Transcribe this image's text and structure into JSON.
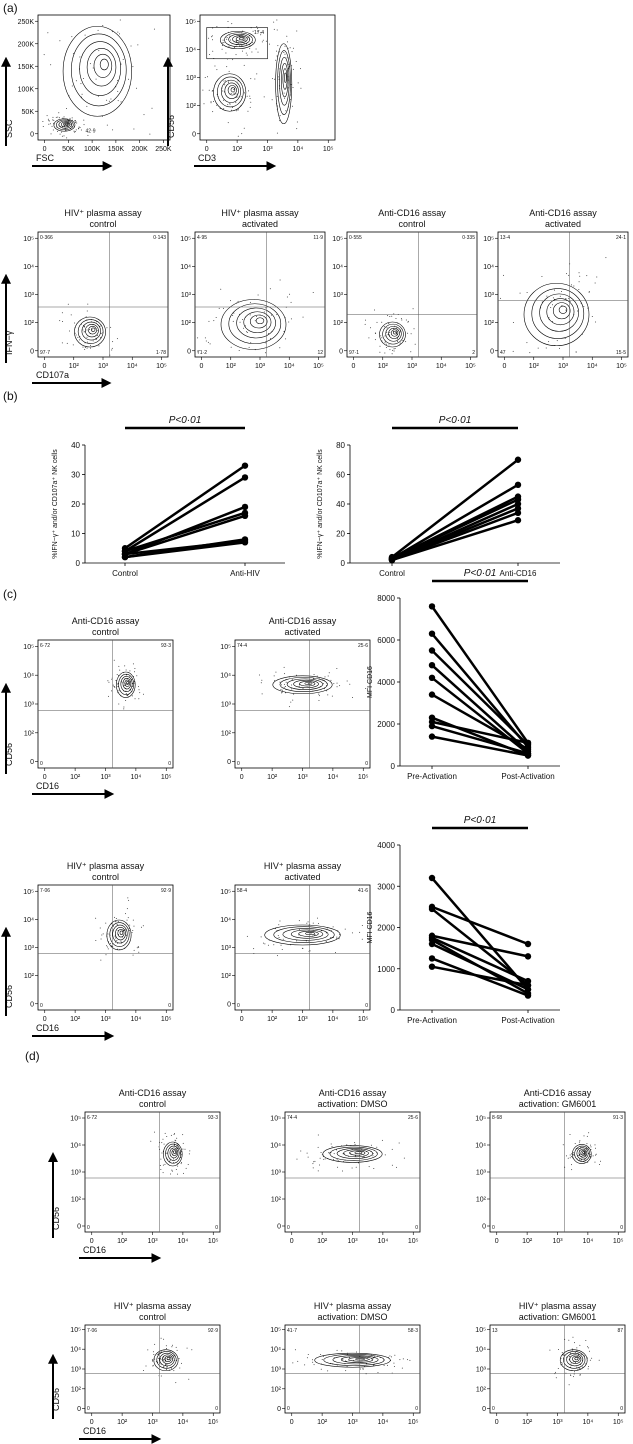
{
  "panel_labels": [
    "(a)",
    "(b)",
    "(c)",
    "(d)"
  ],
  "flow_plots": [
    {
      "x_label": "FSC",
      "y_label": "SSC",
      "x_ticks": [
        "0",
        "50K",
        "100K",
        "150K",
        "200K",
        "250K"
      ],
      "y_ticks": [
        "0",
        "50K",
        "100K",
        "150K",
        "200K",
        "250K"
      ],
      "gate": "42·9"
    },
    {
      "x_label": "CD3",
      "y_label": "CD56",
      "x_ticks": [
        "0",
        "10²",
        "10³",
        "10⁴",
        "10⁵"
      ],
      "y_ticks": [
        "0",
        "10²",
        "10³",
        "10⁴",
        "10⁵"
      ],
      "gate": "17·4"
    },
    {
      "title": [
        "HIV⁺ plasma assay",
        "control"
      ],
      "x_label": "CD107a",
      "y_label": "IFN−γ",
      "x_ticks": [
        "0",
        "10²",
        "10³",
        "10⁴",
        "10⁵"
      ],
      "y_ticks": [
        "0",
        "10²",
        "10³",
        "10⁴",
        "10⁵"
      ],
      "quadrants": [
        "0·366",
        "0·143",
        "97·7",
        "1·78"
      ]
    },
    {
      "title": [
        "HIV⁺ plasma assay",
        "activated"
      ],
      "x_ticks": [
        "0",
        "10²",
        "10³",
        "10⁴",
        "10⁵"
      ],
      "y_ticks": [
        "0",
        "10²",
        "10³",
        "10⁴",
        "10⁵"
      ],
      "quadrants": [
        "4·95",
        "11·9",
        "71·2",
        "12"
      ]
    },
    {
      "title": [
        "Anti-CD16 assay",
        "control"
      ],
      "x_ticks": [
        "0",
        "10²",
        "10³",
        "10⁴",
        "10⁵"
      ],
      "y_ticks": [
        "0",
        "10²",
        "10³",
        "10⁴",
        "10⁵"
      ],
      "quadrants": [
        "0·555",
        "0·335",
        "97·1",
        "2"
      ]
    },
    {
      "title": [
        "Anti-CD16 assay",
        "activated"
      ],
      "x_ticks": [
        "0",
        "10²",
        "10³",
        "10⁴",
        "10⁵"
      ],
      "y_ticks": [
        "0",
        "10²",
        "10³",
        "10⁴",
        "10⁵"
      ],
      "quadrants": [
        "13·4",
        "24·1",
        "47",
        "15·5"
      ]
    },
    {
      "title": [
        "Anti-CD16 assay",
        "control"
      ],
      "x_label": "CD16",
      "y_label": "CD56",
      "x_ticks": [
        "0",
        "10²",
        "10³",
        "10⁴",
        "10⁵"
      ],
      "y_ticks": [
        "0",
        "10²",
        "10³",
        "10⁴",
        "10⁵"
      ],
      "quadrants": [
        "6·72",
        "93·3",
        "0",
        "0"
      ]
    },
    {
      "title": [
        "Anti-CD16 assay",
        "activated"
      ],
      "x_ticks": [
        "0",
        "10²",
        "10³",
        "10⁴",
        "10⁵"
      ],
      "y_ticks": [
        "0",
        "10²",
        "10³",
        "10⁴",
        "10⁵"
      ],
      "quadrants": [
        "74·4",
        "25·6",
        "0",
        "0"
      ]
    },
    {
      "title": [
        "HIV⁺ plasma assay",
        "control"
      ],
      "x_label": "CD16",
      "y_label": "CD56",
      "x_ticks": [
        "0",
        "10²",
        "10³",
        "10⁴",
        "10⁵"
      ],
      "y_ticks": [
        "0",
        "10²",
        "10³",
        "10⁴",
        "10⁵"
      ],
      "quadrants": [
        "7·06",
        "92·9",
        "0",
        "0"
      ]
    },
    {
      "title": [
        "HIV⁺ plasma assay",
        "activated"
      ],
      "x_ticks": [
        "0",
        "10²",
        "10³",
        "10⁴",
        "10⁵"
      ],
      "y_ticks": [
        "0",
        "10²",
        "10³",
        "10⁴",
        "10⁵"
      ],
      "quadrants": [
        "58·4",
        "41·6",
        "0",
        "0"
      ]
    },
    {
      "title": [
        "Anti-CD16 assay",
        "control"
      ],
      "x_label": "CD16",
      "y_label": "CD56",
      "x_ticks": [
        "0",
        "10²",
        "10³",
        "10⁴",
        "10⁵"
      ],
      "y_ticks": [
        "0",
        "10²",
        "10³",
        "10⁴",
        "10⁵"
      ],
      "quadrants": [
        "6·72",
        "93·3",
        "0",
        "0"
      ]
    },
    {
      "title": [
        "Anti-CD16 assay",
        "activation: DMSO"
      ],
      "x_ticks": [
        "0",
        "10²",
        "10³",
        "10⁴",
        "10⁵"
      ],
      "y_ticks": [
        "0",
        "10²",
        "10³",
        "10⁴",
        "10⁵"
      ],
      "quadrants": [
        "74·4",
        "25·6",
        "0",
        "0"
      ]
    },
    {
      "title": [
        "Anti-CD16 assay",
        "activation: GM6001"
      ],
      "x_ticks": [
        "0",
        "10²",
        "10³",
        "10⁴",
        "10⁵"
      ],
      "y_ticks": [
        "0",
        "10²",
        "10³",
        "10⁴",
        "10⁵"
      ],
      "quadrants": [
        "8·68",
        "91·3",
        "0",
        "0"
      ]
    },
    {
      "title": [
        "HIV⁺ plasma assay",
        "control"
      ],
      "x_label": "CD16",
      "y_label": "CD56",
      "x_ticks": [
        "0",
        "10²",
        "10³",
        "10⁴",
        "10⁵"
      ],
      "y_ticks": [
        "0",
        "10²",
        "10³",
        "10⁴",
        "10⁵"
      ],
      "quadrants": [
        "7·06",
        "92·9",
        "0",
        "0"
      ]
    },
    {
      "title": [
        "HIV⁺ plasma assay",
        "activation: DMSO"
      ],
      "x_ticks": [
        "0",
        "10²",
        "10³",
        "10⁴",
        "10⁵"
      ],
      "y_ticks": [
        "0",
        "10²",
        "10³",
        "10⁴",
        "10⁵"
      ],
      "quadrants": [
        "41·7",
        "58·3",
        "0",
        "0"
      ]
    },
    {
      "title": [
        "HIV⁺ plasma assay",
        "activation: GM6001"
      ],
      "x_ticks": [
        "0",
        "10²",
        "10³",
        "10⁴",
        "10⁵"
      ],
      "y_ticks": [
        "0",
        "10²",
        "10³",
        "10⁴",
        "10⁵"
      ],
      "quadrants": [
        "13",
        "87",
        "0",
        "0"
      ]
    }
  ],
  "chart_data": [
    {
      "type": "paired-line",
      "y_label": "%IFN−γ⁺ and/or CD107a⁺ NK cells",
      "annotation": "P<0·01",
      "categories": [
        "Control",
        "Anti-HIV"
      ],
      "ylim": [
        0,
        40
      ],
      "yticks": [
        0,
        10,
        20,
        30,
        40
      ],
      "color": "#000000",
      "pairs": [
        [
          5,
          33
        ],
        [
          4,
          29
        ],
        [
          3,
          19
        ],
        [
          4,
          17
        ],
        [
          3,
          16
        ],
        [
          2,
          8
        ],
        [
          3,
          7.5
        ],
        [
          2,
          7
        ]
      ]
    },
    {
      "type": "paired-line",
      "y_label": "%IFN−γ⁺ and/or CD107a⁺ NK cells",
      "annotation": "P<0·01",
      "categories": [
        "Control",
        "Anti-CD16"
      ],
      "ylim": [
        0,
        80
      ],
      "yticks": [
        0,
        20,
        40,
        60,
        80
      ],
      "color": "#000000",
      "pairs": [
        [
          4,
          70
        ],
        [
          3,
          53
        ],
        [
          3,
          45
        ],
        [
          3,
          43
        ],
        [
          2,
          40
        ],
        [
          2,
          37
        ],
        [
          2,
          34
        ],
        [
          2,
          29
        ]
      ]
    },
    {
      "type": "paired-line",
      "y_label": "MFI CD16",
      "annotation": "P<0·01",
      "categories": [
        "Pre-Activation",
        "Post-Activation"
      ],
      "ylim": [
        0,
        8000
      ],
      "yticks": [
        0,
        2000,
        4000,
        6000,
        8000
      ],
      "color": "#000000",
      "pairs": [
        [
          7600,
          1100
        ],
        [
          6300,
          900
        ],
        [
          5500,
          1000
        ],
        [
          4800,
          700
        ],
        [
          4200,
          600
        ],
        [
          3400,
          800
        ],
        [
          2300,
          500
        ],
        [
          2100,
          1100
        ],
        [
          1900,
          600
        ],
        [
          1400,
          500
        ]
      ]
    },
    {
      "type": "paired-line",
      "y_label": "MFI CD16",
      "annotation": "P<0·01",
      "categories": [
        "Pre-Activation",
        "Post-Activation"
      ],
      "ylim": [
        0,
        4000
      ],
      "yticks": [
        0,
        1000,
        2000,
        3000,
        4000
      ],
      "color": "#000000",
      "pairs": [
        [
          3200,
          500
        ],
        [
          2500,
          1600
        ],
        [
          2450,
          600
        ],
        [
          1800,
          1300
        ],
        [
          1750,
          700
        ],
        [
          1700,
          400
        ],
        [
          1600,
          500
        ],
        [
          1250,
          350
        ],
        [
          1050,
          600
        ]
      ]
    }
  ]
}
